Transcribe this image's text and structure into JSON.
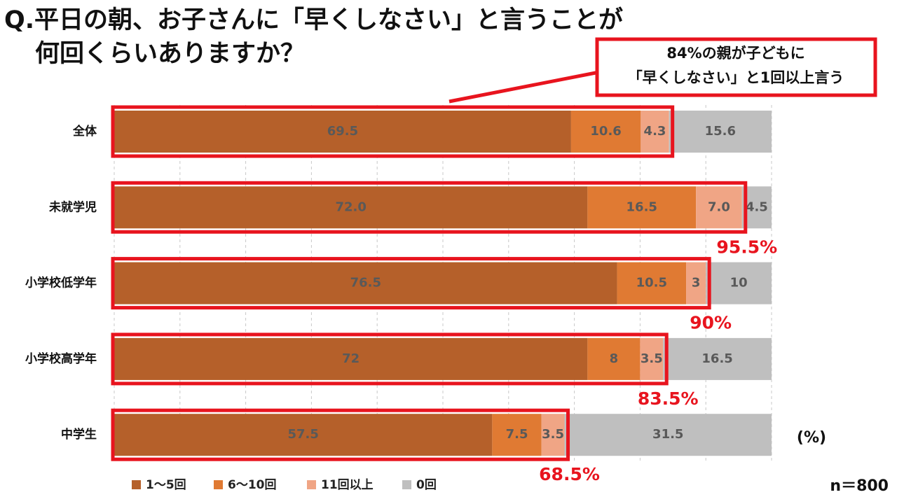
{
  "chart_data": {
    "type": "stacked_barh",
    "title": [
      "Q.平日の朝、お子さんに「早くしなさい」と言うことが",
      "何回くらいありますか？"
    ],
    "categories": [
      "全体",
      "未就学児",
      "小学校低学年",
      "小学校高学年",
      "中学生"
    ],
    "series": [
      {
        "name": "1〜5回",
        "color": "#b5602a",
        "values": [
          69.5,
          72.0,
          76.5,
          72,
          57.5
        ],
        "value_labels": [
          "69.5",
          "72.0",
          "76.5",
          "72",
          "57.5"
        ]
      },
      {
        "name": "6〜10回",
        "color": "#e07a33",
        "values": [
          10.6,
          16.5,
          10.5,
          8,
          7.5
        ],
        "value_labels": [
          "10.6",
          "16.5",
          "10.5",
          "8",
          "7.5"
        ]
      },
      {
        "name": "11回以上",
        "color": "#f0a585",
        "values": [
          4.3,
          7.0,
          3,
          3.5,
          3.5
        ],
        "value_labels": [
          "4.3",
          "7.0",
          "3",
          "3.5",
          "3.5"
        ]
      },
      {
        "name": "0回",
        "color": "#bfbfbf",
        "values": [
          15.6,
          4.5,
          10,
          16.5,
          31.5
        ],
        "value_labels": [
          "15.6",
          "4.5",
          "10",
          "16.5",
          "31.5"
        ]
      }
    ],
    "xlim": [
      0,
      100
    ],
    "xticks": [
      0,
      10,
      20,
      30,
      40,
      50,
      60,
      70,
      80,
      90,
      100
    ],
    "grid": true,
    "legend": "bottom-left",
    "highlight_color": "#e8141e",
    "annotations": {
      "callout": [
        "84%の親が子どもに",
        "「早くしなさい」と1回以上言う"
      ],
      "totals": [
        null,
        "95.5%",
        "90%",
        "83.5%",
        "68.5%"
      ]
    },
    "unit": "(%)",
    "sample": "n＝800"
  }
}
